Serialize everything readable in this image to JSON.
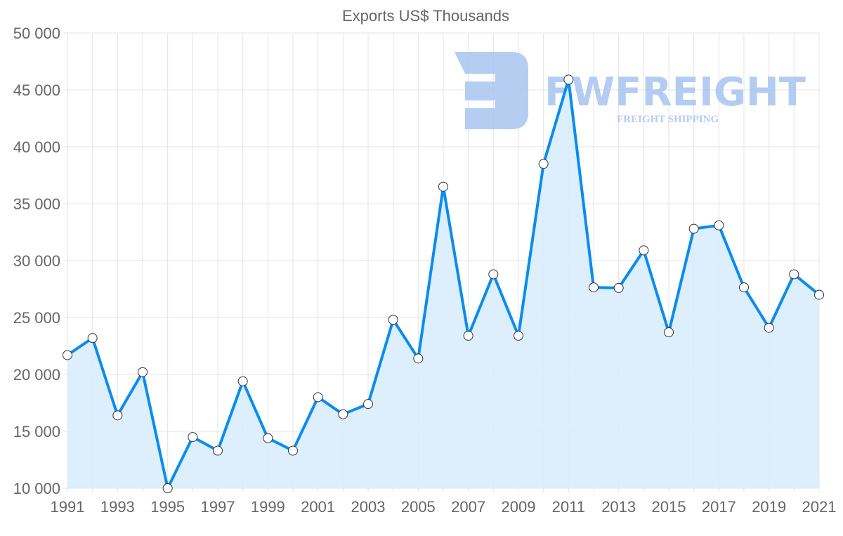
{
  "chart_data": {
    "type": "line",
    "title": "Exports US$ Thousands",
    "xlabel": "",
    "ylabel": "",
    "x": [
      1991,
      1992,
      1993,
      1994,
      1995,
      1996,
      1997,
      1998,
      1999,
      2000,
      2001,
      2002,
      2003,
      2004,
      2005,
      2006,
      2007,
      2008,
      2009,
      2010,
      2011,
      2012,
      2013,
      2014,
      2015,
      2016,
      2017,
      2018,
      2019,
      2020,
      2021
    ],
    "series": [
      {
        "name": "Exports US$ Thousands",
        "values": [
          21700,
          23200,
          16400,
          20200,
          10000,
          14500,
          13300,
          19400,
          14400,
          13300,
          18000,
          16500,
          17400,
          24800,
          21400,
          36500,
          23400,
          28800,
          23400,
          38500,
          45900,
          27650,
          27600,
          30900,
          23700,
          32800,
          33100,
          27650,
          24100,
          28800,
          27000
        ],
        "color": "#0a8cf0",
        "fill": "#d9ecfc"
      }
    ],
    "ylim": [
      10000,
      50000
    ],
    "yticks": [
      "10 000",
      "15 000",
      "20 000",
      "25 000",
      "30 000",
      "35 000",
      "40 000",
      "45 000",
      "50 000"
    ],
    "xticks": [
      "1991",
      "1993",
      "1995",
      "1997",
      "1999",
      "2001",
      "2003",
      "2005",
      "2007",
      "2009",
      "2011",
      "2013",
      "2015",
      "2017",
      "2019",
      "2021"
    ],
    "grid": true,
    "legend": "none"
  },
  "watermark": {
    "brand": "FWFREIGHT",
    "tagline": "FREIGHT SHIPPING",
    "color": "#a9c4f0"
  }
}
